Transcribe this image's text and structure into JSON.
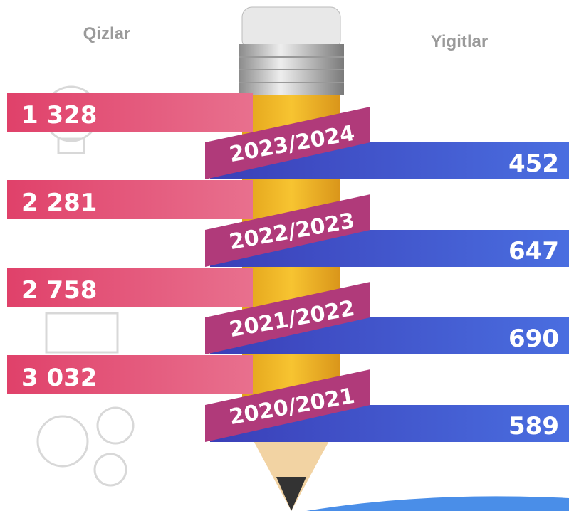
{
  "header": {
    "left": "Qizlar",
    "right": "Yigitlar"
  },
  "rows": [
    {
      "year": "2023/2024",
      "girls": "1 328",
      "boys": "452"
    },
    {
      "year": "2022/2023",
      "girls": "2 281",
      "boys": "647"
    },
    {
      "year": "2021/2022",
      "girls": "2 758",
      "boys": "690"
    },
    {
      "year": "2020/2021",
      "girls": "3 032",
      "boys": "589"
    }
  ]
}
